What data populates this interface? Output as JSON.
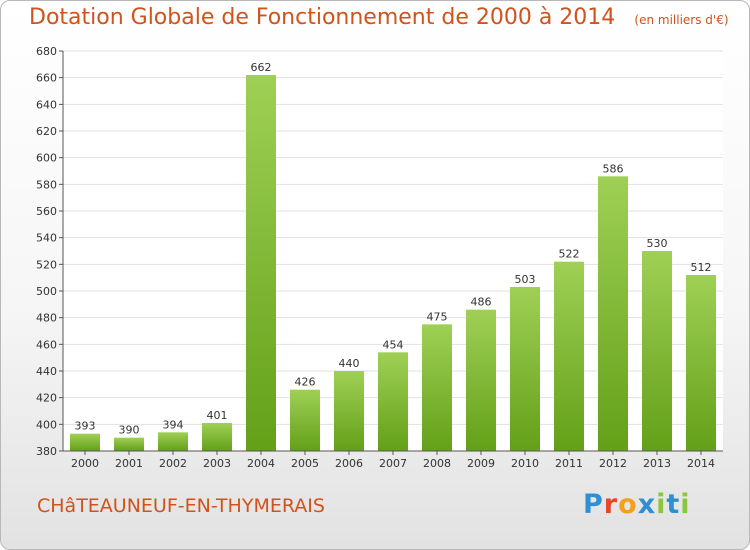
{
  "title": "Dotation Globale de Fonctionnement de 2000 à 2014",
  "unit": "(en milliers d'€)",
  "town": "CHâTEAUNEUF-EN-THYMERAIS",
  "logo": {
    "letters": [
      "P",
      "r",
      "o",
      "x",
      "i",
      "t",
      "i"
    ],
    "colors": [
      "#2f8fd3",
      "#e5472b",
      "#f4a01a",
      "#2f8fd3",
      "#8cc63e",
      "#2f8fd3",
      "#8cc63e"
    ]
  },
  "colors": {
    "accent": "#d0531c",
    "bar_top": "#9fd055",
    "bar_bottom": "#63a018",
    "grid": "#e1e1e1"
  },
  "chart_data": {
    "type": "bar",
    "categories": [
      "2000",
      "2001",
      "2002",
      "2003",
      "2004",
      "2005",
      "2006",
      "2007",
      "2008",
      "2009",
      "2010",
      "2011",
      "2012",
      "2013",
      "2014"
    ],
    "values": [
      393,
      390,
      394,
      401,
      662,
      426,
      440,
      454,
      475,
      486,
      503,
      522,
      586,
      530,
      512
    ],
    "ylim": [
      380,
      680
    ],
    "yticks": [
      380,
      400,
      420,
      440,
      460,
      480,
      500,
      520,
      540,
      560,
      580,
      600,
      620,
      640,
      660,
      680
    ],
    "grid": true,
    "xlabel": "",
    "ylabel": ""
  }
}
